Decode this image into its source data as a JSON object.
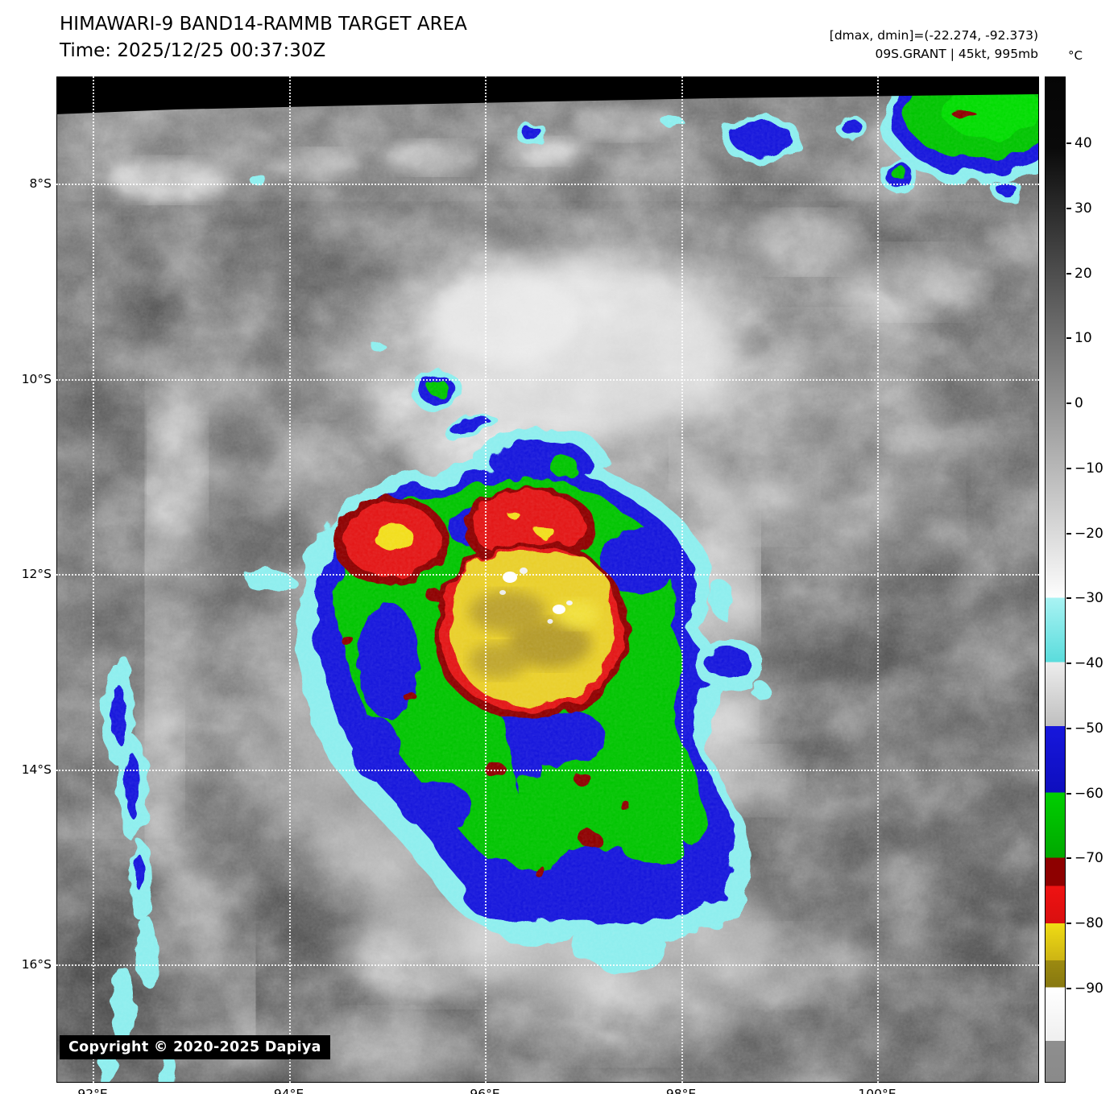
{
  "header": {
    "title": "HIMAWARI-9 BAND14-RAMMB TARGET AREA",
    "time": "Time: 2025/12/25 00:37:30Z",
    "dmax_dmin": "[dmax, dmin]=(-22.274, -92.373)",
    "storm": "09S.GRANT | 45kt, 995mb"
  },
  "colorbar": {
    "unit": "°C",
    "ticks": [
      {
        "label": "40",
        "value": 40
      },
      {
        "label": "30",
        "value": 30
      },
      {
        "label": "20",
        "value": 20
      },
      {
        "label": "10",
        "value": 10
      },
      {
        "label": "0",
        "value": 0
      },
      {
        "label": "−10",
        "value": -10
      },
      {
        "label": "−20",
        "value": -20
      },
      {
        "label": "−30",
        "value": -30
      },
      {
        "label": "−40",
        "value": -40
      },
      {
        "label": "−50",
        "value": -50
      },
      {
        "label": "−60",
        "value": -60
      },
      {
        "label": "−70",
        "value": -70
      },
      {
        "label": "−80",
        "value": -80
      },
      {
        "label": "−90",
        "value": -90
      }
    ],
    "gradient_stops": [
      [
        0,
        "#050505"
      ],
      [
        7,
        "#0a0a0a"
      ],
      [
        51.8,
        "#fdfdfd"
      ],
      [
        51.8,
        "#a9f3f3"
      ],
      [
        58.2,
        "#5adcdc"
      ],
      [
        58.2,
        "#ededed"
      ],
      [
        64.6,
        "#bfbfbf"
      ],
      [
        64.6,
        "#1717dc"
      ],
      [
        71.2,
        "#0e0ebe"
      ],
      [
        71.2,
        "#00cf00"
      ],
      [
        77.7,
        "#00a800"
      ],
      [
        77.7,
        "#8e0000"
      ],
      [
        80.5,
        "#8e0000"
      ],
      [
        80.5,
        "#ef1212"
      ],
      [
        84.2,
        "#d90f0f"
      ],
      [
        84.2,
        "#f0dc14"
      ],
      [
        87.9,
        "#cdb414"
      ],
      [
        87.9,
        "#9c8a10"
      ],
      [
        90.6,
        "#877810"
      ],
      [
        90.6,
        "#ffffff"
      ],
      [
        95.9,
        "#efefef"
      ],
      [
        95.9,
        "#8e8e8e"
      ],
      [
        100,
        "#8a8a8a"
      ]
    ]
  },
  "map": {
    "lat_labels": [
      "8°S",
      "10°S",
      "12°S",
      "14°S",
      "16°S"
    ],
    "lon_labels": [
      "92°E",
      "94°E",
      "96°E",
      "98°E",
      "100°E"
    ],
    "copyright": "Copyright © 2020-2025 Dapiya"
  }
}
